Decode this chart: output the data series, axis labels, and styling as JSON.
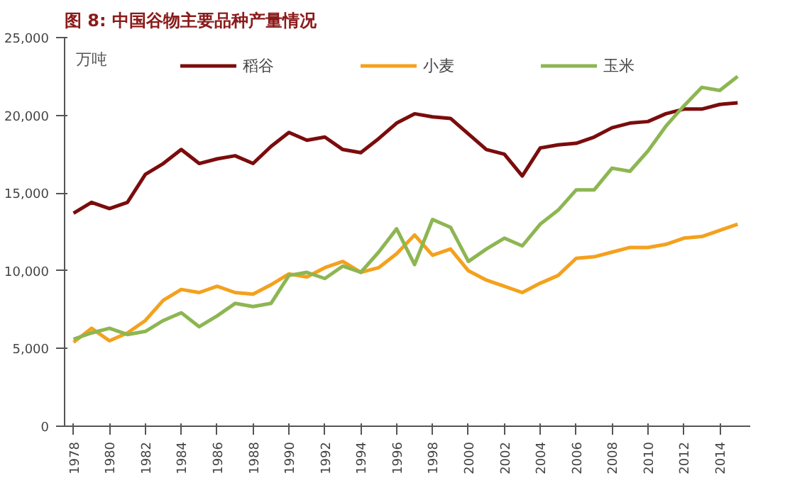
{
  "chart_data": {
    "type": "line",
    "title": "图 8:  中国谷物主要品种产量情况",
    "ylabel": "万吨",
    "x": [
      1978,
      1979,
      1980,
      1981,
      1982,
      1983,
      1984,
      1985,
      1986,
      1987,
      1988,
      1989,
      1990,
      1991,
      1992,
      1993,
      1994,
      1995,
      1996,
      1997,
      1998,
      1999,
      2000,
      2001,
      2002,
      2003,
      2004,
      2005,
      2006,
      2007,
      2008,
      2009,
      2010,
      2011,
      2012,
      2013,
      2014,
      2015
    ],
    "series": [
      {
        "name": "稻谷",
        "color": "#7b0c0c",
        "values": [
          13700,
          14400,
          14000,
          14400,
          16200,
          16900,
          17800,
          16900,
          17200,
          17400,
          16900,
          18000,
          18900,
          18400,
          18600,
          17800,
          17600,
          18500,
          19500,
          20100,
          19900,
          19800,
          18800,
          17800,
          17500,
          16100,
          17900,
          18100,
          18200,
          18600,
          19200,
          19500,
          19600,
          20100,
          20400,
          20400,
          20700,
          20800
        ]
      },
      {
        "name": "小麦",
        "color": "#f4a11d",
        "values": [
          5400,
          6300,
          5500,
          6000,
          6800,
          8100,
          8800,
          8600,
          9000,
          8600,
          8500,
          9100,
          9800,
          9600,
          10200,
          10600,
          9900,
          10200,
          11100,
          12300,
          11000,
          11400,
          10000,
          9400,
          9000,
          8600,
          9200,
          9700,
          10800,
          10900,
          11200,
          11500,
          11500,
          11700,
          12100,
          12200,
          12600,
          13000
        ]
      },
      {
        "name": "玉米",
        "color": "#8db652",
        "values": [
          5600,
          6000,
          6300,
          5900,
          6100,
          6800,
          7300,
          6400,
          7100,
          7900,
          7700,
          7900,
          9700,
          9900,
          9500,
          10300,
          9900,
          11200,
          12700,
          10400,
          13300,
          12800,
          10600,
          11400,
          12100,
          11600,
          13000,
          13900,
          15200,
          15200,
          16600,
          16400,
          17700,
          19300,
          20600,
          21800,
          21600,
          22500
        ]
      }
    ],
    "xlim": [
      1977.5,
      2015.7
    ],
    "xticks": [
      1978,
      1980,
      1982,
      1984,
      1986,
      1988,
      1990,
      1992,
      1994,
      1996,
      1998,
      2000,
      2002,
      2004,
      2006,
      2008,
      2010,
      2012,
      2014
    ],
    "ylim": [
      0,
      25000
    ],
    "yticks": [
      0,
      {
        "value": 5000,
        "label": "5,000"
      },
      {
        "value": 10000,
        "label": "10,000"
      },
      {
        "value": 15000,
        "label": "15,000"
      },
      {
        "value": 20000,
        "label": "20,000"
      },
      {
        "value": 25000,
        "label": "25,000"
      }
    ],
    "legend": "top",
    "grid": false,
    "marker": "none",
    "line_style": "solid"
  }
}
